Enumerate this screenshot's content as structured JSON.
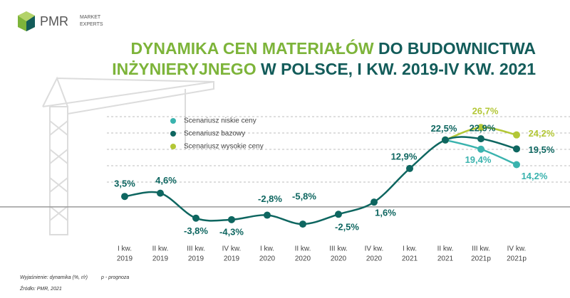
{
  "chart_data": {
    "type": "line",
    "logo": {
      "name": "PMR",
      "tag": [
        "MARKET",
        "EXPERTS"
      ]
    },
    "title_lines": [
      [
        {
          "text": "DYNAMIKA CEN MATERIAŁÓW",
          "color": "#7db43a"
        },
        {
          "text": " DO BUDOWNICTWA",
          "color": "#135c5a"
        }
      ],
      [
        {
          "text": "INŻYNIERYJNEGO",
          "color": "#7db43a"
        },
        {
          "text": " W POLSCE, I KW. 2019-IV KW. 2021",
          "color": "#135c5a"
        }
      ]
    ],
    "categories": [
      [
        "I kw.",
        "2019"
      ],
      [
        "II kw.",
        "2019"
      ],
      [
        "III kw.",
        "2019"
      ],
      [
        "IV kw.",
        "2019"
      ],
      [
        "I kw.",
        "2020"
      ],
      [
        "II kw.",
        "2020"
      ],
      [
        "III kw.",
        "2020"
      ],
      [
        "IV kw.",
        "2020"
      ],
      [
        "I kw.",
        "2021"
      ],
      [
        "II kw.",
        "2021"
      ],
      [
        "III kw.",
        "2021p"
      ],
      [
        "IV kw.",
        "2021p"
      ]
    ],
    "ylim": [
      -12,
      38
    ],
    "series": [
      {
        "name": "Scenariusz niskie ceny",
        "color": "#3ab3ae",
        "values": [
          null,
          null,
          null,
          null,
          null,
          null,
          null,
          null,
          null,
          22.5,
          19.4,
          14.2
        ],
        "value_labels": [
          null,
          null,
          null,
          null,
          null,
          null,
          null,
          null,
          null,
          null,
          "19,4%",
          "14,2%"
        ]
      },
      {
        "name": "Scenariusz bazowy",
        "color": "#0e6660",
        "values": [
          3.5,
          4.6,
          -3.8,
          -4.3,
          -2.8,
          -5.8,
          -2.5,
          1.6,
          12.9,
          22.5,
          22.9,
          19.5
        ],
        "value_labels": [
          "3,5%",
          "4,6%",
          "-3,8%",
          "-4,3%",
          "-2,8%",
          "-5,8%",
          "-2,5%",
          "1,6%",
          "12,9%",
          "22,5%",
          "22,9%",
          "19,5%"
        ]
      },
      {
        "name": "Scenariusz wysokie ceny",
        "color": "#b3c736",
        "values": [
          null,
          null,
          null,
          null,
          null,
          null,
          null,
          null,
          null,
          22.5,
          26.7,
          24.2
        ],
        "value_labels": [
          null,
          null,
          null,
          null,
          null,
          null,
          null,
          null,
          null,
          null,
          "26,7%",
          "24,2%"
        ]
      }
    ],
    "notes": [
      "Wyjaśnienie: dynamika (%, r/r)",
      "p - prognoza",
      "Źródło: PMR, 2021"
    ]
  }
}
